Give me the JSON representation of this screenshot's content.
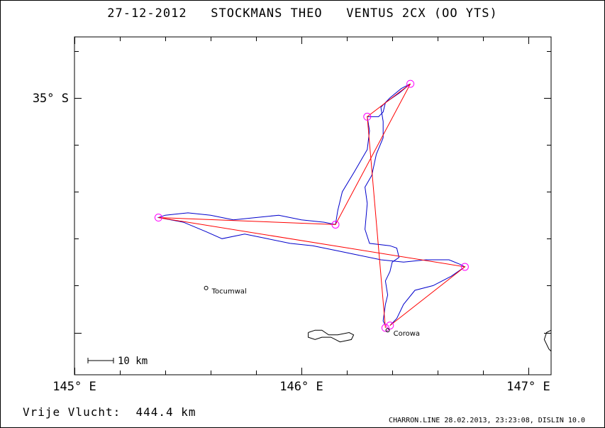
{
  "title": "27-12-2012   STOCKMANS THEO   VENTUS 2CX (OO YTS)",
  "axes": {
    "x_labels": [
      "145° E",
      "146° E",
      "147° E"
    ],
    "y_labels": [
      "35° S"
    ]
  },
  "places": [
    {
      "name": "Tocumwal",
      "lon": 145.58,
      "lat": -35.81
    },
    {
      "name": "Corowa",
      "lon": 146.38,
      "lat": -35.99
    }
  ],
  "scale_bar": {
    "label": "10 km"
  },
  "free_flight": {
    "label": "Vrije Vlucht:",
    "value": "444.4 km"
  },
  "footer": "CHARRON.LINE 28.02.2013, 23:23:08, DISLIN 10.0",
  "colors": {
    "track": "#0000cc",
    "task": "#ff0000",
    "turnpoint": "#ff00ff",
    "coast": "#000000"
  },
  "map_data": {
    "lon_range": [
      145.0,
      147.1
    ],
    "lat_range": [
      -36.18,
      -34.74
    ],
    "turnpoints": [
      {
        "lon": 146.37,
        "lat": -35.98
      },
      {
        "lon": 146.29,
        "lat": -35.08
      },
      {
        "lon": 146.48,
        "lat": -34.94
      },
      {
        "lon": 146.15,
        "lat": -35.54
      },
      {
        "lon": 145.37,
        "lat": -35.51
      },
      {
        "lon": 146.72,
        "lat": -35.72
      },
      {
        "lon": 146.39,
        "lat": -35.97
      }
    ],
    "track": [
      [
        146.37,
        -35.97
      ],
      [
        146.36,
        -35.95
      ],
      [
        146.37,
        -35.88
      ],
      [
        146.38,
        -35.84
      ],
      [
        146.37,
        -35.78
      ],
      [
        146.39,
        -35.74
      ],
      [
        146.4,
        -35.7
      ],
      [
        146.43,
        -35.68
      ],
      [
        146.42,
        -35.64
      ],
      [
        146.39,
        -35.63
      ],
      [
        146.3,
        -35.62
      ],
      [
        146.28,
        -35.56
      ],
      [
        146.29,
        -35.45
      ],
      [
        146.28,
        -35.38
      ],
      [
        146.31,
        -35.33
      ],
      [
        146.33,
        -35.24
      ],
      [
        146.36,
        -35.17
      ],
      [
        146.36,
        -35.1
      ],
      [
        146.35,
        -35.04
      ],
      [
        146.39,
        -35.0
      ],
      [
        146.44,
        -34.96
      ],
      [
        146.48,
        -34.94
      ],
      [
        146.43,
        -34.98
      ],
      [
        146.37,
        -35.02
      ],
      [
        146.36,
        -35.06
      ],
      [
        146.34,
        -35.08
      ],
      [
        146.29,
        -35.08
      ],
      [
        146.3,
        -35.14
      ],
      [
        146.29,
        -35.22
      ],
      [
        146.23,
        -35.32
      ],
      [
        146.18,
        -35.4
      ],
      [
        146.16,
        -35.48
      ],
      [
        146.15,
        -35.54
      ],
      [
        146.1,
        -35.53
      ],
      [
        146.0,
        -35.52
      ],
      [
        145.9,
        -35.5
      ],
      [
        145.8,
        -35.51
      ],
      [
        145.7,
        -35.52
      ],
      [
        145.6,
        -35.5
      ],
      [
        145.5,
        -35.49
      ],
      [
        145.4,
        -35.5
      ],
      [
        145.37,
        -35.51
      ],
      [
        145.48,
        -35.53
      ],
      [
        145.58,
        -35.57
      ],
      [
        145.65,
        -35.6
      ],
      [
        145.75,
        -35.58
      ],
      [
        145.85,
        -35.6
      ],
      [
        145.95,
        -35.62
      ],
      [
        146.05,
        -35.63
      ],
      [
        146.15,
        -35.65
      ],
      [
        146.25,
        -35.67
      ],
      [
        146.35,
        -35.69
      ],
      [
        146.45,
        -35.7
      ],
      [
        146.55,
        -35.69
      ],
      [
        146.65,
        -35.69
      ],
      [
        146.7,
        -35.71
      ],
      [
        146.72,
        -35.72
      ],
      [
        146.66,
        -35.76
      ],
      [
        146.58,
        -35.8
      ],
      [
        146.5,
        -35.82
      ],
      [
        146.45,
        -35.88
      ],
      [
        146.42,
        -35.94
      ],
      [
        146.39,
        -35.97
      ]
    ],
    "coast": [
      [
        [
          146.03,
          -36.0
        ],
        [
          146.06,
          -35.99
        ],
        [
          146.09,
          -35.99
        ],
        [
          146.12,
          -36.01
        ],
        [
          146.16,
          -36.01
        ],
        [
          146.21,
          -36.0
        ],
        [
          146.23,
          -36.01
        ],
        [
          146.22,
          -36.03
        ],
        [
          146.17,
          -36.04
        ],
        [
          146.13,
          -36.02
        ],
        [
          146.09,
          -36.02
        ],
        [
          146.06,
          -36.03
        ],
        [
          146.03,
          -36.02
        ],
        [
          146.03,
          -36.0
        ]
      ],
      [
        [
          147.1,
          -35.99
        ],
        [
          147.08,
          -36.0
        ],
        [
          147.07,
          -36.03
        ],
        [
          147.09,
          -36.07
        ],
        [
          147.1,
          -36.08
        ]
      ]
    ]
  }
}
